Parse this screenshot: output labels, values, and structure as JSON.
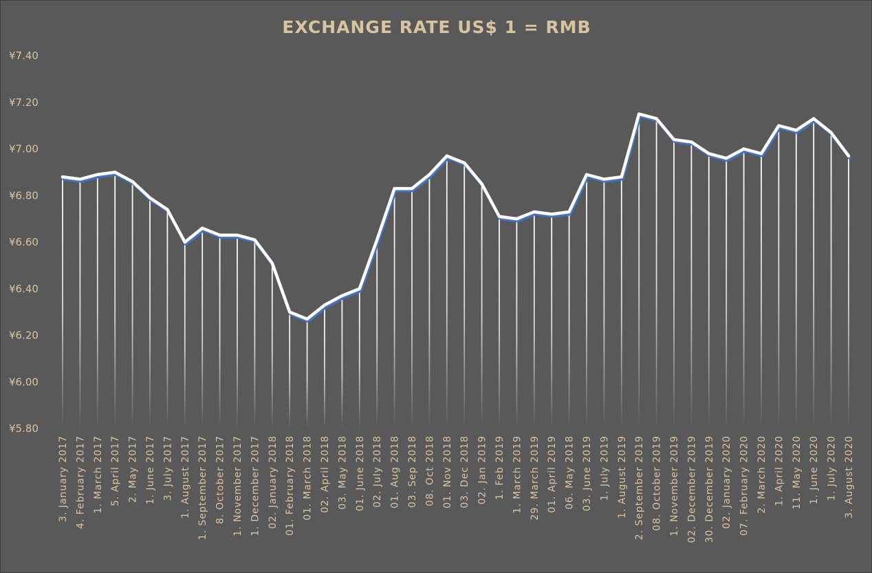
{
  "chart_data": {
    "type": "line",
    "title": "EXCHANGE RATE US$ 1 = RMB",
    "xlabel": "",
    "ylabel": "",
    "ylim": [
      5.8,
      7.4
    ],
    "yticks": [
      "¥5.80",
      "¥6.00",
      "¥6.20",
      "¥6.40",
      "¥6.60",
      "¥6.80",
      "¥7.00",
      "¥7.20",
      "¥7.40"
    ],
    "grid": false,
    "drop_lines": true,
    "legend": "none",
    "colors": {
      "background": "#595959",
      "line": "#ffffff",
      "line_shadow": "#4472c4",
      "title": "#d9c4a0",
      "ticks": "#d9c4a0"
    },
    "categories": [
      "3. January 2017",
      "4. February 2017",
      "1. March 2017",
      "5. April 2017",
      "2. May 2017",
      "1. June 2017",
      "3. July 2017",
      "1. August 2017",
      "1. September 2017",
      "8. October 2017",
      "1. November 2017",
      "1. December 2017",
      "02. January 2018",
      "01. February 2018",
      "01. March 2018",
      "02. April 2018",
      "03. May 2018",
      "01. June 2018",
      "02. July 2018",
      "01. Aug 2018",
      "03. Sep 2018",
      "08. Oct 2018",
      "01. Nov 2018",
      "03. Dec 2018",
      "02. Jan 2019",
      "1. Feb 2019",
      "1. March 2019",
      "29. March 2019",
      "01. April 2019",
      "06. May 2018",
      "03. June 2019",
      "1. July 2019",
      "1. August 2019",
      "2. September 2019",
      "08. October 2019",
      "1. November 2019",
      "02. December 2019",
      "30. December 2019",
      "02. January 2020",
      "07. February 2020",
      "2. March 2020",
      "1. April 2020",
      "11. May 2020",
      "1. June 2020",
      "1. July 2020",
      "3. August 2020"
    ],
    "series": [
      {
        "values": [
          6.88,
          6.87,
          6.89,
          6.9,
          6.86,
          6.79,
          6.74,
          6.6,
          6.66,
          6.63,
          6.63,
          6.61,
          6.51,
          6.3,
          6.27,
          6.33,
          6.37,
          6.4,
          6.61,
          6.83,
          6.83,
          6.89,
          6.97,
          6.94,
          6.85,
          6.71,
          6.7,
          6.73,
          6.72,
          6.73,
          6.89,
          6.87,
          6.88,
          7.15,
          7.13,
          7.04,
          7.03,
          6.98,
          6.96,
          7.0,
          6.98,
          7.1,
          7.08,
          7.13,
          7.07,
          6.97
        ]
      }
    ]
  }
}
